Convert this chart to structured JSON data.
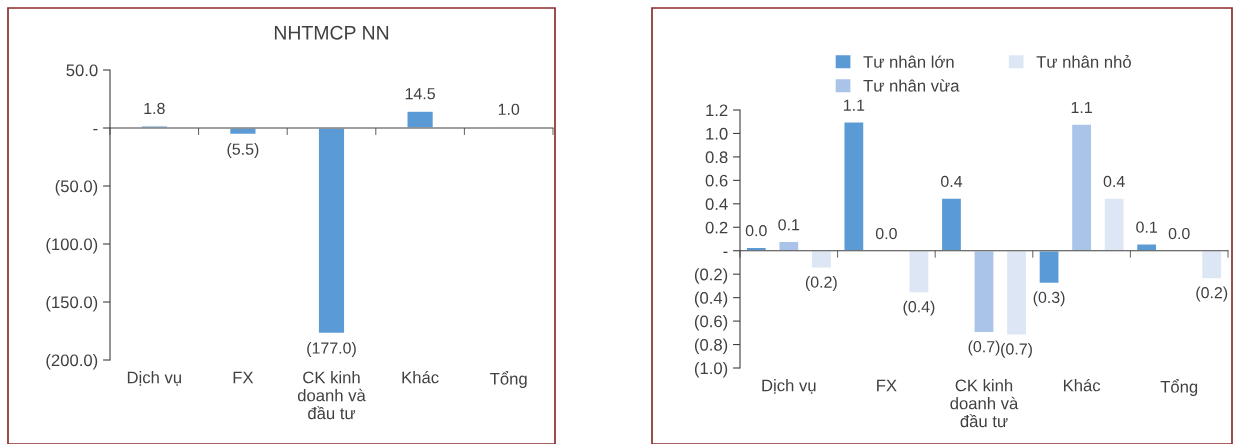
{
  "chart_data": [
    {
      "type": "bar",
      "title": "NHTMCP NN",
      "categories": [
        "Dịch vụ",
        "FX",
        "CK kinh\ndoanh và\nđầu tư",
        "Khác",
        "Tổng"
      ],
      "series": [
        {
          "color": "#5b9bd5",
          "values": [
            1.8,
            -5.5,
            -177.0,
            14.5,
            1.0
          ],
          "value_labels": [
            "1.8",
            "(5.5)",
            "(177.0)",
            "14.5",
            "1.0"
          ]
        }
      ],
      "ylim": [
        -200,
        50
      ],
      "yticks": [
        {
          "value": 50,
          "label": "50.0"
        },
        {
          "value": 0,
          "label": "-"
        },
        {
          "value": -50,
          "label": "(50.0)"
        },
        {
          "value": -100,
          "label": "(100.0)"
        },
        {
          "value": -150,
          "label": "(150.0)"
        },
        {
          "value": -200,
          "label": "(200.0)"
        }
      ],
      "legend": false
    },
    {
      "type": "bar",
      "categories": [
        "Dịch vụ",
        "FX",
        "CK kinh\ndoanh và\nđầu tư",
        "Khác",
        "Tổng"
      ],
      "series": [
        {
          "name": "Tư nhân lớn",
          "color": "#5b9bd5",
          "values": [
            0.03,
            1.1,
            0.45,
            -0.28,
            0.06
          ],
          "value_labels": [
            "0.0",
            "1.1",
            "0.4",
            "(0.3)",
            "0.1"
          ]
        },
        {
          "name": "Tư nhân vừa",
          "color": "#a9c4e8",
          "values": [
            0.08,
            0.005,
            -0.7,
            1.08,
            0.005
          ],
          "value_labels": [
            "0.1",
            "0.0",
            "(0.7)",
            "1.1",
            "0.0"
          ]
        },
        {
          "name": "Tư nhân nhỏ",
          "color": "#dde6f5",
          "values": [
            -0.15,
            -0.36,
            -0.72,
            0.45,
            -0.24
          ],
          "value_labels": [
            "(0.2)",
            "(0.4)",
            "(0.7)",
            "0.4",
            "(0.2)"
          ]
        }
      ],
      "ylim": [
        -1.0,
        1.2
      ],
      "yticks": [
        {
          "value": 1.2,
          "label": "1.2"
        },
        {
          "value": 1.0,
          "label": "1.0"
        },
        {
          "value": 0.8,
          "label": "0.8"
        },
        {
          "value": 0.6,
          "label": "0.6"
        },
        {
          "value": 0.4,
          "label": "0.4"
        },
        {
          "value": 0.2,
          "label": "0.2"
        },
        {
          "value": 0,
          "label": "-"
        },
        {
          "value": -0.2,
          "label": "(0.2)"
        },
        {
          "value": -0.4,
          "label": "(0.4)"
        },
        {
          "value": -0.6,
          "label": "(0.6)"
        },
        {
          "value": -0.8,
          "label": "(0.8)"
        },
        {
          "value": -1.0,
          "label": "(1.0)"
        }
      ],
      "legend": "top"
    }
  ]
}
